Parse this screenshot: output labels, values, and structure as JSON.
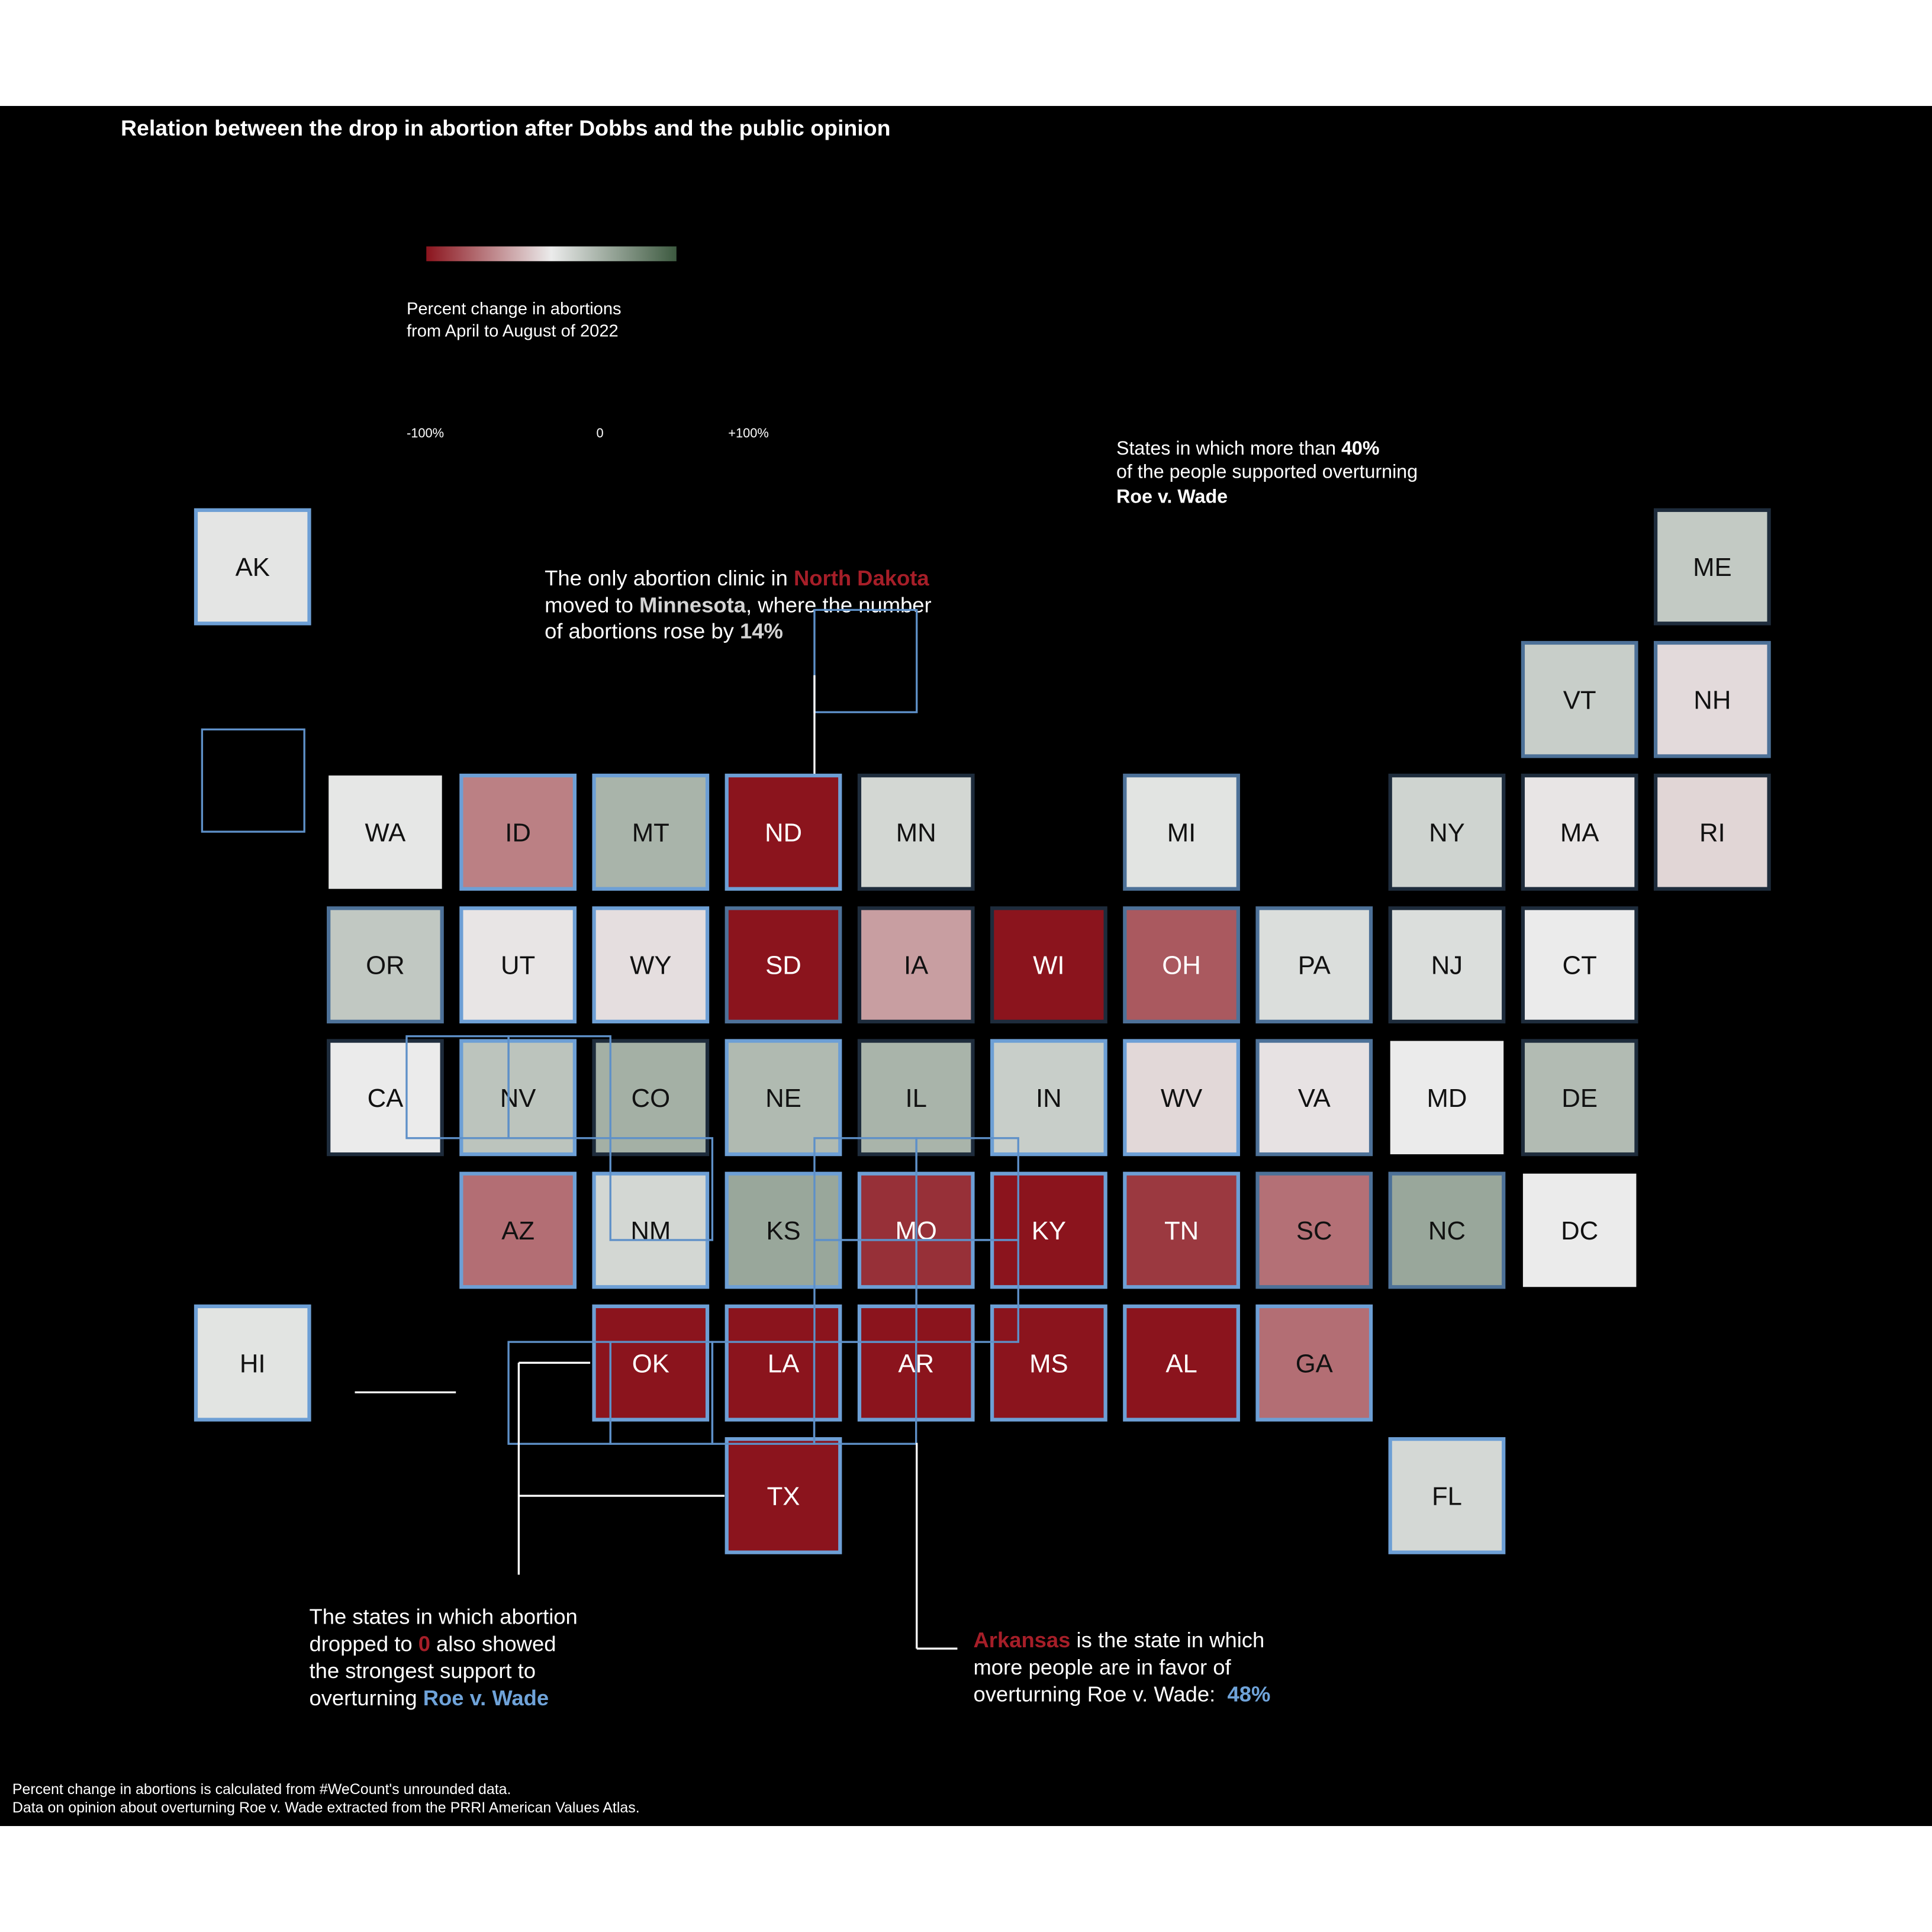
{
  "title": "Relation between the drop in abortion after Dobbs and the public opinion",
  "colors": {
    "background": "#000000",
    "text": "#ffffff",
    "highlight_red": "#a61e28",
    "highlight_gray": "#d4d4d4",
    "highlight_blue": "#6fa3d9"
  },
  "legend": {
    "title_lines": [
      "Percent change in abortions",
      "from April to August of 2022"
    ],
    "ticks": [
      "-100%",
      "0",
      "+100%"
    ],
    "colors": {
      "low": "#8b141d",
      "mid": "#ebebeb",
      "high": "#3d5a40"
    }
  },
  "annotations": {
    "support_note": {
      "l1_a": "States in which more than ",
      "l1_b": "40%",
      "l2": "of the people supported overturning",
      "l3": "Roe v. Wade"
    },
    "nd_note": {
      "l1_a": "The only abortion clinic in ",
      "l1_b": "North Dakota",
      "l2_a": "moved to ",
      "l2_b": "Minnesota",
      "l2_c": ", where the number",
      "l3_a": "of abortions rose by ",
      "l3_b": "14%"
    },
    "zero_note": {
      "l1": "The states in which abortion",
      "l2_a": "dropped to ",
      "l2_b": "0",
      "l2_c": " also showed",
      "l3": "the strongest support to",
      "l4_a": "overturning ",
      "l4_b": "Roe v. Wade"
    },
    "ar_note": {
      "l1_a": "Arkansas",
      "l1_b": " is the state in which",
      "l2": "more people are in favor of",
      "l3_a": "overturning Roe v. Wade:  ",
      "l3_b": "48%"
    }
  },
  "footnotes": [
    "Percent change in abortions is calculated from #WeCount's unrounded data.",
    "Data on opinion about overturning Roe v. Wade extracted from the PRRI American Values Atlas."
  ],
  "chart_data": {
    "type": "heatmap",
    "color_domain": [
      -100,
      0,
      100
    ],
    "tiles": [
      {
        "state": "AK",
        "change": 4,
        "outline": "#6d9fd5"
      },
      {
        "state": "ME",
        "change": 23,
        "outline": "#1e2c3c"
      },
      {
        "state": "VT",
        "change": 20,
        "outline": "#4d7198"
      },
      {
        "state": "NH",
        "change": -8,
        "outline": "#4d7198"
      },
      {
        "state": "WA",
        "change": 3,
        "outline": null
      },
      {
        "state": "ID",
        "change": -50,
        "outline": "#6d9fd5"
      },
      {
        "state": "MT",
        "change": 38,
        "outline": "#6d9fd5"
      },
      {
        "state": "ND",
        "change": -100,
        "outline": "#6d9fd5"
      },
      {
        "state": "MN",
        "change": 14,
        "outline": "#1e2c3c"
      },
      {
        "state": "MI",
        "change": 5,
        "outline": "#4d7198"
      },
      {
        "state": "NY",
        "change": 16,
        "outline": "#1e2c3c"
      },
      {
        "state": "MA",
        "change": -3,
        "outline": "#1e2c3c"
      },
      {
        "state": "RI",
        "change": -10,
        "outline": "#1e2c3c"
      },
      {
        "state": "OR",
        "change": 24,
        "outline": "#4d7198"
      },
      {
        "state": "UT",
        "change": -3,
        "outline": "#6d9fd5"
      },
      {
        "state": "WY",
        "change": -6,
        "outline": "#6d9fd5"
      },
      {
        "state": "SD",
        "change": -100,
        "outline": "#4d7198"
      },
      {
        "state": "IA",
        "change": -36,
        "outline": "#1e2c3c"
      },
      {
        "state": "WI",
        "change": -100,
        "outline": "#1e2c3c"
      },
      {
        "state": "OH",
        "change": -68,
        "outline": "#4d7198"
      },
      {
        "state": "PA",
        "change": 9,
        "outline": "#4d7198"
      },
      {
        "state": "NJ",
        "change": 9,
        "outline": "#1e2c3c"
      },
      {
        "state": "CT",
        "change": 0,
        "outline": "#1e2c3c"
      },
      {
        "state": "CA",
        "change": 0,
        "outline": "#1e2c3c"
      },
      {
        "state": "NV",
        "change": 27,
        "outline": "#6d9fd5"
      },
      {
        "state": "CO",
        "change": 41,
        "outline": "#1e2c3c"
      },
      {
        "state": "NE",
        "change": 34,
        "outline": "#6d9fd5"
      },
      {
        "state": "IL",
        "change": 38,
        "outline": "#1e2c3c"
      },
      {
        "state": "IN",
        "change": 20,
        "outline": "#6d9fd5"
      },
      {
        "state": "WV",
        "change": -9,
        "outline": "#6d9fd5"
      },
      {
        "state": "VA",
        "change": -4,
        "outline": "#4d7198"
      },
      {
        "state": "MD",
        "change": 0,
        "outline": null
      },
      {
        "state": "DE",
        "change": 33,
        "outline": "#1e2c3c"
      },
      {
        "state": "AZ",
        "change": -58,
        "outline": "#6d9fd5"
      },
      {
        "state": "NM",
        "change": 14,
        "outline": "#6d9fd5"
      },
      {
        "state": "KS",
        "change": 47,
        "outline": "#6d9fd5"
      },
      {
        "state": "MO",
        "change": -87,
        "outline": "#6d9fd5"
      },
      {
        "state": "KY",
        "change": -100,
        "outline": "#6d9fd5"
      },
      {
        "state": "TN",
        "change": -83,
        "outline": "#6d9fd5"
      },
      {
        "state": "SC",
        "change": -57,
        "outline": "#4d7198"
      },
      {
        "state": "NC",
        "change": 47,
        "outline": "#4d7198"
      },
      {
        "state": "DC",
        "change": 0,
        "outline": null
      },
      {
        "state": "HI",
        "change": 5,
        "outline": "#6d9fd5"
      },
      {
        "state": "OK",
        "change": -100,
        "outline": "#6d9fd5"
      },
      {
        "state": "LA",
        "change": -100,
        "outline": "#6d9fd5"
      },
      {
        "state": "AR",
        "change": -100,
        "outline": "#6d9fd5"
      },
      {
        "state": "MS",
        "change": -100,
        "outline": "#6d9fd5"
      },
      {
        "state": "AL",
        "change": -100,
        "outline": "#6d9fd5"
      },
      {
        "state": "GA",
        "change": -58,
        "outline": "#6d9fd5"
      },
      {
        "state": "TX",
        "change": -100,
        "outline": "#6d9fd5"
      },
      {
        "state": "FL",
        "change": 13,
        "outline": "#6d9fd5"
      }
    ]
  }
}
